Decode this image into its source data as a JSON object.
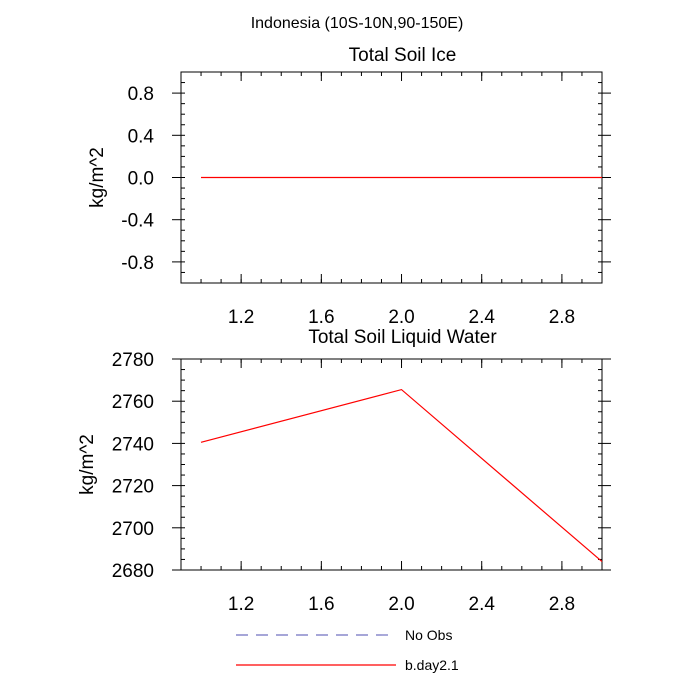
{
  "figure_title": "Indonesia (10S-10N,90-150E)",
  "colors": {
    "model_line": "#ff0000",
    "obs_line": "#7070c0",
    "axis": "#000000"
  },
  "legend": [
    {
      "label": "No Obs",
      "style": "dashed",
      "color": "#7070c0"
    },
    {
      "label": "b.day2.1",
      "style": "solid",
      "color": "#ff0000"
    }
  ],
  "chart_data": [
    {
      "type": "line",
      "title": "Total Soil Ice",
      "xlabel": "",
      "ylabel": "kg/m^2",
      "xlim": [
        0.9,
        3.0
      ],
      "ylim": [
        -1.0,
        1.0
      ],
      "xticks": [
        1.2,
        1.6,
        2.0,
        2.4,
        2.8
      ],
      "xtick_labels": [
        "1.2",
        "1.6",
        "2.0",
        "2.4",
        "2.8"
      ],
      "x_minor_step": 0.1,
      "yticks": [
        -0.8,
        -0.4,
        0.0,
        0.4,
        0.8
      ],
      "ytick_labels": [
        "-0.8",
        "-0.4",
        "0.0",
        "0.4",
        "0.8"
      ],
      "y_minor_step": 0.1,
      "series": [
        {
          "name": "b.day2.1",
          "color": "#ff0000",
          "x": [
            1,
            2,
            3
          ],
          "values": [
            0,
            0,
            0
          ]
        }
      ]
    },
    {
      "type": "line",
      "title": "Total Soil Liquid Water",
      "xlabel": "",
      "ylabel": "kg/m^2",
      "xlim": [
        0.9,
        3.0
      ],
      "ylim": [
        2680,
        2780
      ],
      "xticks": [
        1.2,
        1.6,
        2.0,
        2.4,
        2.8
      ],
      "xtick_labels": [
        "1.2",
        "1.6",
        "2.0",
        "2.4",
        "2.8"
      ],
      "x_minor_step": 0.1,
      "yticks": [
        2680,
        2700,
        2720,
        2740,
        2760,
        2780
      ],
      "ytick_labels": [
        "2680",
        "2700",
        "2720",
        "2740",
        "2760",
        "2780"
      ],
      "y_minor_step": 5,
      "series": [
        {
          "name": "b.day2.1",
          "color": "#ff0000",
          "x": [
            1,
            2,
            3
          ],
          "values": [
            2740.5,
            2765.5,
            2684
          ]
        }
      ]
    }
  ]
}
